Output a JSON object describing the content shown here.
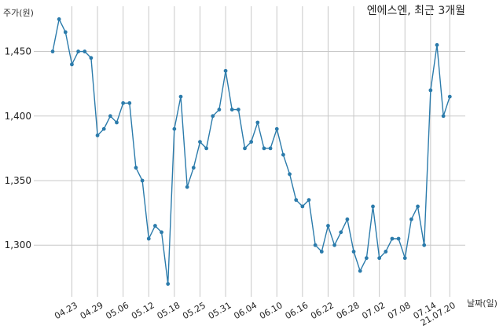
{
  "chart_data": {
    "type": "line",
    "title": "엔에스엔, 최근 3개월",
    "ylabel": "주가(원)",
    "xlabel": "날짜(일)",
    "ylim": [
      1260,
      1485
    ],
    "grid": true,
    "yticks": [
      1300,
      1350,
      1400,
      1450
    ],
    "ytick_labels": [
      "1,300",
      "1,350",
      "1,400",
      "1,450"
    ],
    "xtick_labels": [
      {
        "index": 3,
        "label": "04.23"
      },
      {
        "index": 7,
        "label": "04.29"
      },
      {
        "index": 11,
        "label": "05.06"
      },
      {
        "index": 15,
        "label": "05.12"
      },
      {
        "index": 19,
        "label": "05.18"
      },
      {
        "index": 23,
        "label": "05.25"
      },
      {
        "index": 27,
        "label": "05.31"
      },
      {
        "index": 31,
        "label": "06.04"
      },
      {
        "index": 35,
        "label": "06.10"
      },
      {
        "index": 39,
        "label": "06.16"
      },
      {
        "index": 43,
        "label": "06.22"
      },
      {
        "index": 47,
        "label": "06.28"
      },
      {
        "index": 51,
        "label": "07.02"
      },
      {
        "index": 55,
        "label": "07.08"
      },
      {
        "index": 59,
        "label": "07.14"
      },
      {
        "index": 62,
        "label": "21.07.20"
      }
    ],
    "series": [
      {
        "color": "#2b7bab",
        "values": [
          1450,
          1475,
          1465,
          1440,
          1450,
          1450,
          1445,
          1385,
          1390,
          1400,
          1395,
          1410,
          1410,
          1360,
          1350,
          1305,
          1315,
          1310,
          1270,
          1390,
          1415,
          1345,
          1360,
          1380,
          1375,
          1400,
          1405,
          1435,
          1405,
          1405,
          1375,
          1380,
          1395,
          1375,
          1375,
          1390,
          1370,
          1355,
          1335,
          1330,
          1335,
          1300,
          1295,
          1315,
          1300,
          1310,
          1320,
          1295,
          1280,
          1290,
          1330,
          1290,
          1295,
          1305,
          1305,
          1290,
          1320,
          1330,
          1300,
          1420,
          1455,
          1400,
          1415
        ]
      }
    ]
  }
}
